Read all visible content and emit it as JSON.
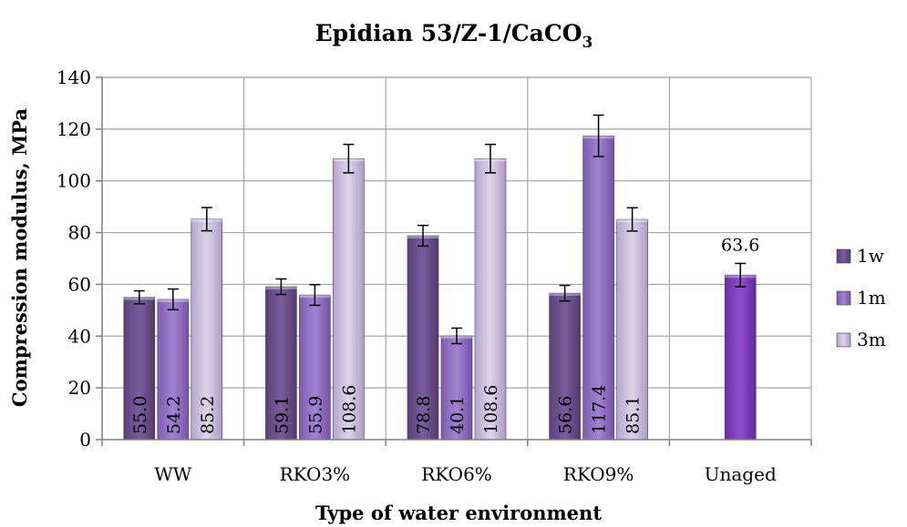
{
  "chart_data": {
    "type": "bar",
    "title_main": "Epidian 53/Z-1/CaCO",
    "title_subscript": "3",
    "xlabel": "Type of water environment",
    "ylabel": "Compression modulus, MPa",
    "ylim": [
      0,
      140
    ],
    "yticks": [
      0,
      20,
      40,
      60,
      80,
      100,
      120,
      140
    ],
    "grid": true,
    "legend_position": "right",
    "categories": [
      "WW",
      "RKO3%",
      "RKO6%",
      "RKO9%",
      "Unaged"
    ],
    "series": [
      {
        "name": "1w",
        "color": "#6b4f8c",
        "values": [
          55.0,
          59.1,
          78.8,
          56.6,
          null
        ],
        "errors": [
          2.5,
          3.0,
          4.0,
          3.0,
          null
        ],
        "labels": [
          "55.0",
          "59.1",
          "78.8",
          "56.6",
          null
        ]
      },
      {
        "name": "1m",
        "color": "#8e6cc0",
        "values": [
          54.2,
          55.9,
          40.1,
          117.4,
          null
        ],
        "errors": [
          4.0,
          4.0,
          3.0,
          8.0,
          null
        ],
        "labels": [
          "54.2",
          "55.9",
          "40.1",
          "117.4",
          null
        ]
      },
      {
        "name": "3m",
        "color": "#c3b6d8",
        "values": [
          85.2,
          108.6,
          108.6,
          85.1,
          null
        ],
        "errors": [
          4.5,
          5.5,
          5.5,
          4.5,
          null
        ],
        "labels": [
          "85.2",
          "108.6",
          "108.6",
          "85.1",
          null
        ]
      }
    ],
    "unaged": {
      "value": 63.6,
      "error": 4.5,
      "label": "63.6",
      "color": "#7b3fb8"
    }
  }
}
